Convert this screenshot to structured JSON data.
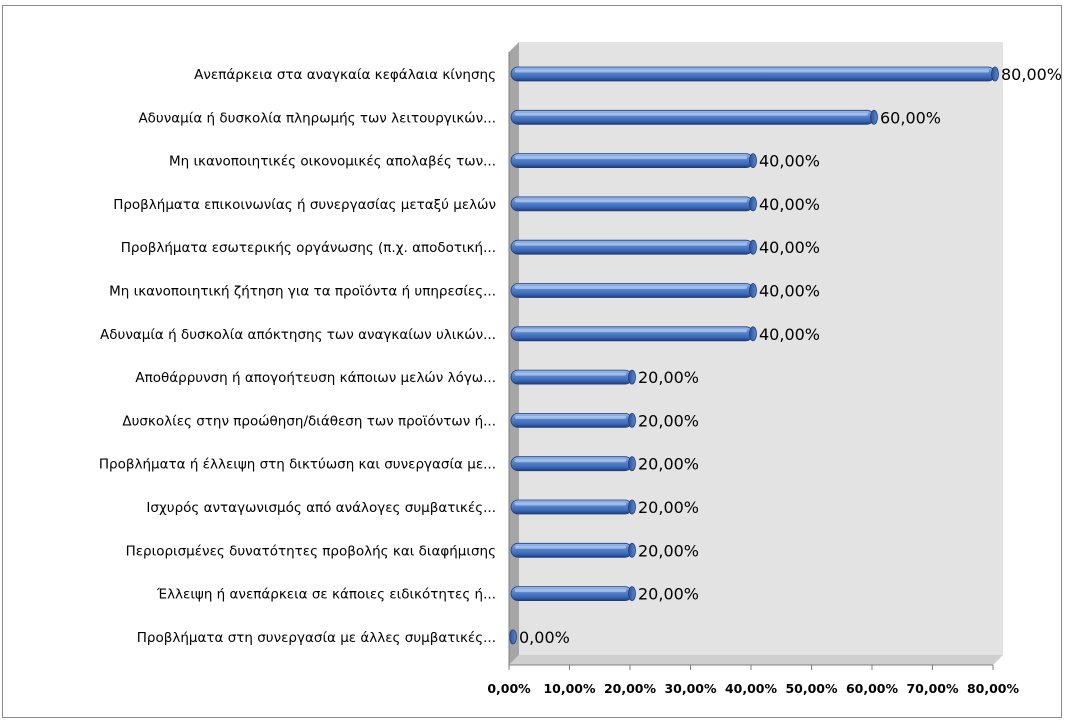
{
  "chart_data": {
    "type": "bar",
    "orientation": "horizontal",
    "title": "",
    "xlabel": "",
    "ylabel": "",
    "xlim": [
      0,
      80
    ],
    "grid": false,
    "legend": "none",
    "categories": [
      "Ανεπάρκεια στα αναγκαία κεφάλαια κίνησης",
      "Αδυναμία ή δυσκολία πληρωμής των λειτουργικών...",
      "Μη ικανοποιητικές οικονομικές απολαβές των...",
      "Προβλήματα επικοινωνίας ή συνεργασίας μεταξύ μελών",
      "Προβλήματα εσωτερικής οργάνωσης (π.χ. αποδοτική...",
      "Μη ικανοποιητική ζήτηση για τα προϊόντα ή υπηρεσίες...",
      "Αδυναμία ή δυσκολία απόκτησης των αναγκαίων υλικών...",
      "Αποθάρρυνση ή απογοήτευση κάποιων μελών λόγω...",
      "Δυσκολίες στην προώθηση/διάθεση των προϊόντων ή...",
      "Προβλήματα ή έλλειψη στη δικτύωση και συνεργασία με...",
      "Ισχυρός ανταγωνισμός από ανάλογες συμβατικές...",
      "Περιορισμένες δυνατότητες προβολής και διαφήμισης",
      "Έλλειψη ή ανεπάρκεια σε κάποιες ειδικότητες ή...",
      "Προβλήματα στη συνεργασία με άλλες συμβατικές..."
    ],
    "values": [
      80,
      60,
      40,
      40,
      40,
      40,
      40,
      20,
      20,
      20,
      20,
      20,
      20,
      0
    ],
    "value_labels": [
      "80,00%",
      "60,00%",
      "40,00%",
      "40,00%",
      "40,00%",
      "40,00%",
      "40,00%",
      "20,00%",
      "20,00%",
      "20,00%",
      "20,00%",
      "20,00%",
      "20,00%",
      "0,00%"
    ],
    "ticks": [
      0,
      10,
      20,
      30,
      40,
      50,
      60,
      70,
      80
    ],
    "tick_labels": [
      "0,00%",
      "10,00%",
      "20,00%",
      "30,00%",
      "40,00%",
      "50,00%",
      "60,00%",
      "70,00%",
      "80,00%"
    ],
    "colors": {
      "bar_light": "#8fb2e6",
      "bar": "#4a7ac6",
      "bar_dark": "#1f3d7a",
      "plot_back": "#e3e3e3",
      "plot_wall": "#a6a6a6",
      "axis": "#7f7f7f"
    }
  }
}
